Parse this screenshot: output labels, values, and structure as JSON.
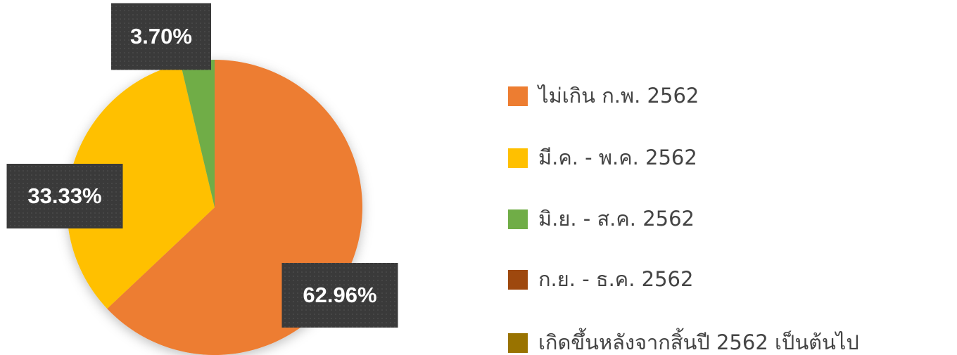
{
  "chart_data": {
    "type": "pie",
    "categories": [
      "ไม่เกิน ก.พ. 2562",
      "มี.ค. - พ.ค. 2562",
      "มิ.ย. - ส.ค. 2562",
      "ก.ย. - ธ.ค. 2562",
      "เกิดขึ้นหลังจากสิ้นปี 2562 เป็นต้นไป"
    ],
    "values": [
      62.96,
      33.33,
      3.7,
      0,
      0
    ],
    "value_labels": [
      "62.96%",
      "33.33%",
      "3.70%",
      null,
      null
    ],
    "colors": [
      "#ed7d31",
      "#ffc000",
      "#70ad47",
      "#9e480e",
      "#997300"
    ],
    "legend": "right"
  }
}
